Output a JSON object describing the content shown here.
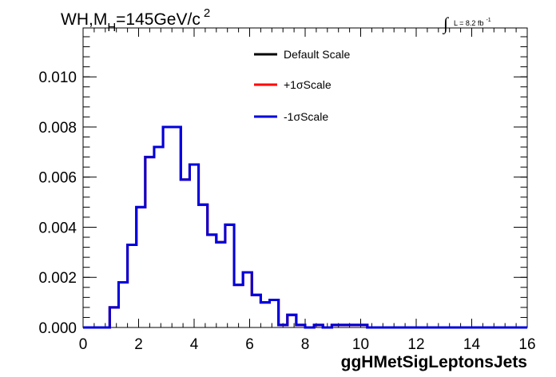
{
  "chart_data": {
    "type": "histogram",
    "title": {
      "main": "WH,M",
      "subscript": "H",
      "rest": "=145GeV/c",
      "superscript": "2"
    },
    "luminosity": {
      "integral": "∫",
      "text": "L = 8.2 fb",
      "superscript": "-1"
    },
    "xlabel": "ggHMetSigLeptonsJets",
    "ylabel": "",
    "xlim": [
      0,
      16
    ],
    "ylim": [
      0,
      0.01195
    ],
    "x_ticks": [
      "0",
      "2",
      "4",
      "6",
      "8",
      "10",
      "12",
      "14",
      "16"
    ],
    "y_ticks": [
      "0.000",
      "0.002",
      "0.004",
      "0.006",
      "0.008",
      "0.010"
    ],
    "grid": false,
    "legend_position": "top-center",
    "bin_width": 0.32,
    "series": [
      {
        "name": "Default Scale",
        "color": "#000000",
        "values": [
          0,
          0,
          0,
          0.0008,
          0.0018,
          0.0033,
          0.0048,
          0.0068,
          0.0072,
          0.008,
          0.008,
          0.0059,
          0.0065,
          0.0049,
          0.0037,
          0.0034,
          0.0041,
          0.0017,
          0.0022,
          0.0013,
          0.001,
          0.0011,
          0.0001,
          0.0005,
          0.0001,
          0.0,
          0.0001,
          0.0,
          0.0001,
          0.0001,
          0.0001,
          0.0001,
          0,
          0,
          0,
          0,
          0,
          0,
          0,
          0,
          0,
          0,
          0,
          0,
          0,
          0,
          0,
          0,
          0,
          0
        ]
      },
      {
        "name": "+1σScale",
        "color": "#ff0000",
        "values": [
          0,
          0,
          0,
          0.0008,
          0.0018,
          0.0033,
          0.0048,
          0.0068,
          0.0072,
          0.008,
          0.008,
          0.0059,
          0.0065,
          0.0049,
          0.0037,
          0.0034,
          0.0041,
          0.0017,
          0.0022,
          0.0013,
          0.001,
          0.0011,
          0.0001,
          0.0005,
          0.0001,
          0.0,
          0.0001,
          0.0,
          0.0001,
          0.0001,
          0.0001,
          0.0001,
          0,
          0,
          0,
          0,
          0,
          0,
          0,
          0,
          0,
          0,
          0,
          0,
          0,
          0,
          0,
          0,
          0,
          0
        ]
      },
      {
        "name": "-1σScale",
        "color": "#0000dd",
        "values": [
          0,
          0,
          0,
          0.0008,
          0.0018,
          0.0033,
          0.0048,
          0.0068,
          0.0072,
          0.008,
          0.008,
          0.0059,
          0.0065,
          0.0049,
          0.0037,
          0.0034,
          0.0041,
          0.0017,
          0.0022,
          0.0013,
          0.001,
          0.0011,
          0.0001,
          0.0005,
          0.0001,
          0.0,
          0.0001,
          0.0,
          0.0001,
          0.0001,
          0.0001,
          0.0001,
          0,
          0,
          0,
          0,
          0,
          0,
          0,
          0,
          0,
          0,
          0,
          0,
          0,
          0,
          0,
          0,
          0,
          0
        ]
      }
    ]
  }
}
